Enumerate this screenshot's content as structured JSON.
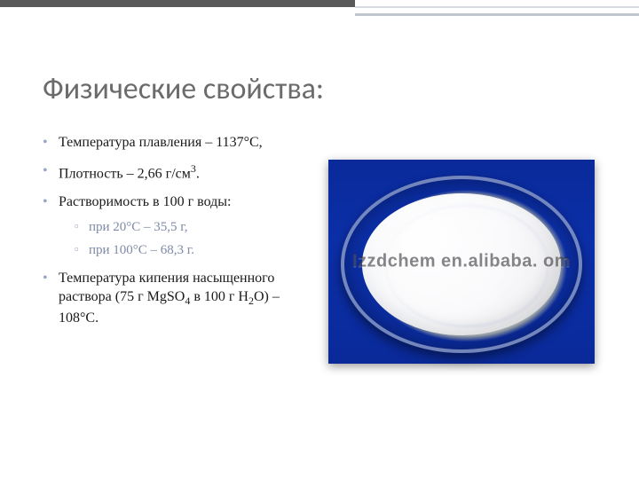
{
  "title": "Физические свойства:",
  "bullets": {
    "b1_pre": "Температура плавления – ",
    "b1_val": "1137°С,",
    "b2_pre": "Плотность – ",
    "b2_val": "2,66 г/см",
    "b2_sup": "3",
    "b2_post": ".",
    "b3": "Растворимость в 100 г воды:",
    "b3a": "при 20°С – 35,5 г,",
    "b3b": "при 100°С – 68,3 г.",
    "b4_pre": "Температура кипения насыщенного раствора (75 г MgSO",
    "b4_sub1": "4",
    "b4_mid": " в 100 г Н",
    "b4_sub2": "2",
    "b4_post": "О) – 108°С."
  },
  "image": {
    "watermark": "lzzdchem en.alibaba. om"
  },
  "colors": {
    "title": "#6b6b6b",
    "text": "#1a1a1a",
    "bullet_marker": "#9aa5c8",
    "sub_text": "#7e8aa8",
    "photo_bg": "#0a2a9a",
    "topbar_dark": "#595959",
    "topbar_light": "#bfc6d0"
  }
}
